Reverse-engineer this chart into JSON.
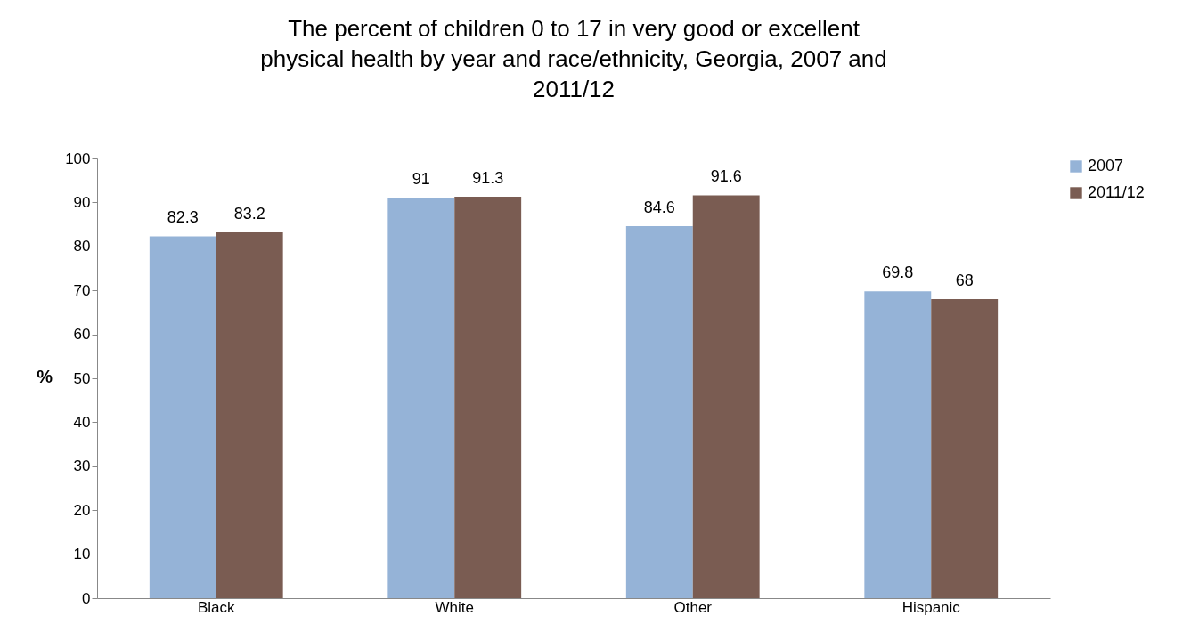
{
  "chart_data": {
    "type": "bar",
    "title": "The percent of children 0 to 17 in very good or excellent physical health by year and race/ethnicity, Georgia, 2007 and 2011/12",
    "ylabel": "%",
    "categories": [
      "Black",
      "White",
      "Other",
      "Hispanic"
    ],
    "series": [
      {
        "name": "2007",
        "color": "#95b3d7",
        "values": [
          82.3,
          91,
          84.6,
          69.8
        ]
      },
      {
        "name": "2011/12",
        "color": "#7a5c52",
        "values": [
          83.2,
          91.3,
          91.6,
          68
        ]
      }
    ],
    "ylim": [
      0,
      100
    ],
    "yticks": [
      0,
      10,
      20,
      30,
      40,
      50,
      60,
      70,
      80,
      90,
      100
    ],
    "data_labels": true,
    "legend": "right",
    "grid": false
  }
}
